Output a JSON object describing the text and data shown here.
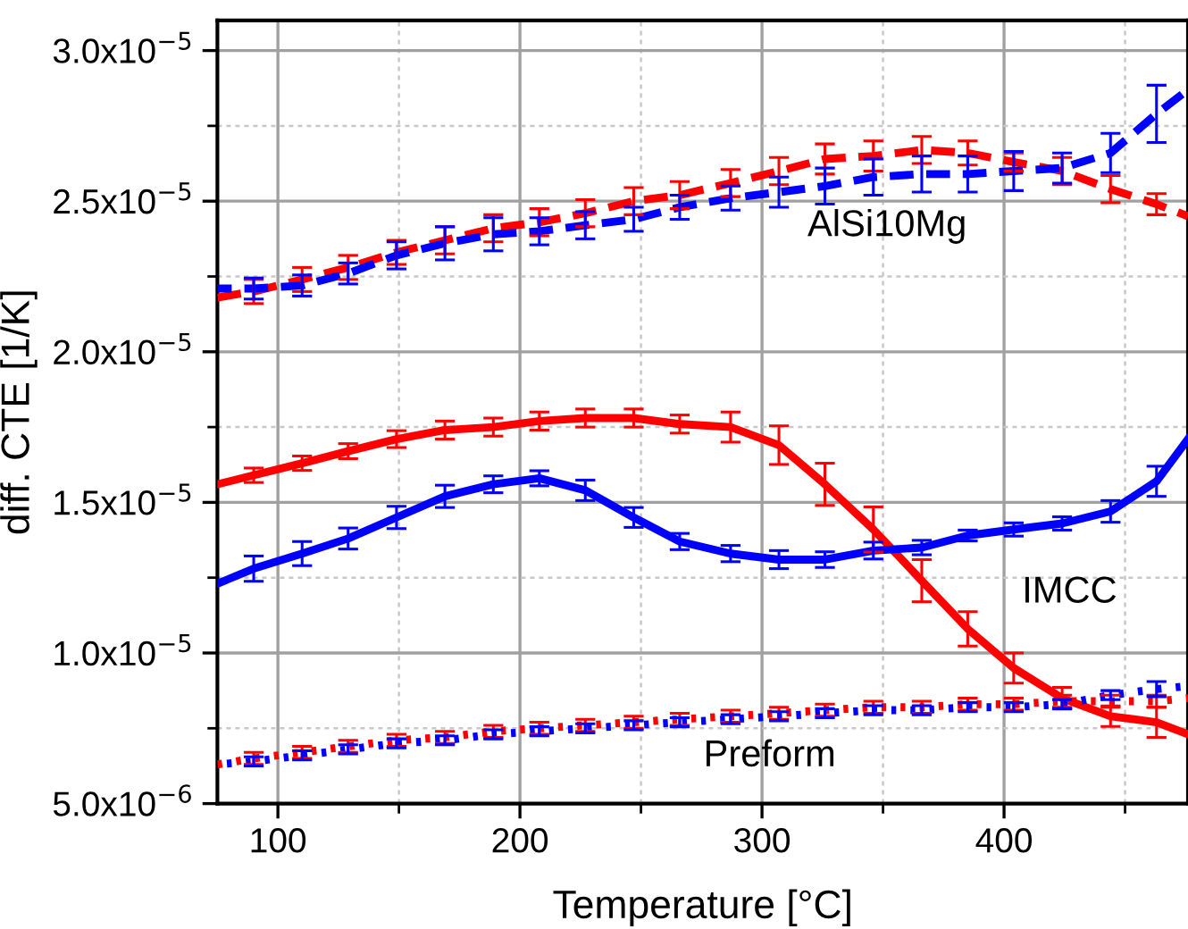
{
  "chart_data": {
    "type": "line",
    "xlabel": "Temperature [°C]",
    "ylabel": "diff. CTE [1/K]",
    "xlim": [
      75,
      476
    ],
    "xticks": [
      100,
      200,
      300,
      400
    ],
    "ylim": [
      5e-06,
      3.1e-05
    ],
    "yticks": [
      {
        "value": 5e-06,
        "label": "5.0x10$^{−6}$"
      },
      {
        "value": 1e-05,
        "label": "1.0x10$^{−5}$"
      },
      {
        "value": 1.5e-05,
        "label": "1.5x10$^{−5}$"
      },
      {
        "value": 2e-05,
        "label": "2.0x10$^{−5}$"
      },
      {
        "value": 2.5e-05,
        "label": "2.5x10$^{−5}$"
      },
      {
        "value": 3e-05,
        "label": "3.0x10$^{−5}$"
      }
    ],
    "grid": true,
    "marker": "none",
    "annotations": [
      "AlSi10Mg",
      "IMCC",
      "Preform"
    ],
    "series": [
      {
        "color": "#ff0000",
        "line_style": "dashed",
        "x": [
          75,
          90,
          110,
          129,
          149,
          169,
          189,
          208,
          227,
          247,
          266,
          287,
          307,
          326,
          346,
          366,
          385,
          404,
          424,
          444,
          463,
          476
        ],
        "values": [
          2.18e-05,
          2.2e-05,
          2.24e-05,
          2.28e-05,
          2.33e-05,
          2.37e-05,
          2.41e-05,
          2.43e-05,
          2.46e-05,
          2.5e-05,
          2.52e-05,
          2.56e-05,
          2.6e-05,
          2.64e-05,
          2.65e-05,
          2.67e-05,
          2.66e-05,
          2.63e-05,
          2.6e-05,
          2.54e-05,
          2.49e-05,
          2.45e-05
        ],
        "errors": [
          null,
          4e-07,
          4e-07,
          4e-07,
          4e-07,
          4.5e-07,
          4.5e-07,
          4.5e-07,
          4.5e-07,
          4.5e-07,
          4.5e-07,
          4.5e-07,
          4.5e-07,
          5e-07,
          5e-07,
          4.5e-07,
          4e-07,
          3e-07,
          4.5e-07,
          4.5e-07,
          3.5e-07,
          null
        ]
      },
      {
        "color": "#0000ff",
        "line_style": "dashed",
        "x": [
          75,
          90,
          110,
          129,
          149,
          169,
          189,
          208,
          227,
          247,
          266,
          287,
          307,
          326,
          346,
          366,
          385,
          404,
          424,
          444,
          463,
          476
        ],
        "values": [
          2.21e-05,
          2.21e-05,
          2.22e-05,
          2.26e-05,
          2.32e-05,
          2.36e-05,
          2.39e-05,
          2.4e-05,
          2.42e-05,
          2.44e-05,
          2.48e-05,
          2.51e-05,
          2.53e-05,
          2.55e-05,
          2.58e-05,
          2.59e-05,
          2.59e-05,
          2.6e-05,
          2.61e-05,
          2.66e-05,
          2.79e-05,
          2.87e-05
        ],
        "errors": [
          null,
          3.5e-07,
          3.5e-07,
          3.5e-07,
          4.5e-07,
          5.5e-07,
          5.5e-07,
          4.5e-07,
          4.5e-07,
          4e-07,
          4e-07,
          4e-07,
          5e-07,
          6e-07,
          6e-07,
          6e-07,
          6e-07,
          6.5e-07,
          5e-07,
          6.5e-07,
          9.5e-07,
          null
        ]
      },
      {
        "color": "#ff0000",
        "line_style": "solid",
        "x": [
          75,
          90,
          110,
          129,
          149,
          169,
          189,
          208,
          227,
          247,
          266,
          287,
          307,
          326,
          346,
          366,
          385,
          404,
          424,
          444,
          463,
          476
        ],
        "values": [
          1.56e-05,
          1.59e-05,
          1.63e-05,
          1.67e-05,
          1.71e-05,
          1.74e-05,
          1.75e-05,
          1.77e-05,
          1.78e-05,
          1.78e-05,
          1.76e-05,
          1.75e-05,
          1.69e-05,
          1.56e-05,
          1.41e-05,
          1.24e-05,
          1.08e-05,
          9.5e-06,
          8.5e-06,
          7.9e-06,
          7.7e-06,
          7.3e-06
        ],
        "errors": [
          null,
          2.4e-07,
          2.4e-07,
          2.5e-07,
          2.8e-07,
          3e-07,
          3e-07,
          3e-07,
          3e-07,
          3e-07,
          3e-07,
          5e-07,
          6.4e-07,
          7e-07,
          7.5e-07,
          7e-07,
          5.7e-07,
          5e-07,
          3.6e-07,
          3.4e-07,
          5e-07,
          null
        ]
      },
      {
        "color": "#0000ff",
        "line_style": "solid",
        "x": [
          75,
          90,
          110,
          129,
          149,
          169,
          189,
          208,
          227,
          247,
          266,
          287,
          307,
          326,
          346,
          366,
          385,
          404,
          424,
          444,
          463,
          476
        ],
        "values": [
          1.23e-05,
          1.28e-05,
          1.33e-05,
          1.38e-05,
          1.45e-05,
          1.52e-05,
          1.56e-05,
          1.58e-05,
          1.54e-05,
          1.45e-05,
          1.37e-05,
          1.33e-05,
          1.31e-05,
          1.31e-05,
          1.34e-05,
          1.35e-05,
          1.39e-05,
          1.41e-05,
          1.43e-05,
          1.47e-05,
          1.57e-05,
          1.71e-05
        ],
        "errors": [
          null,
          4.2e-07,
          4e-07,
          3.5e-07,
          3.7e-07,
          3.7e-07,
          2.8e-07,
          2.5e-07,
          3.4e-07,
          3.3e-07,
          2.7e-07,
          2.7e-07,
          3e-07,
          2.6e-07,
          2.8e-07,
          2.4e-07,
          1.8e-07,
          2.2e-07,
          2.2e-07,
          3.6e-07,
          5e-07,
          null
        ]
      },
      {
        "color": "#ff0000",
        "line_style": "dotted",
        "x": [
          75,
          90,
          110,
          129,
          149,
          169,
          189,
          208,
          227,
          247,
          266,
          287,
          307,
          326,
          346,
          366,
          385,
          404,
          424,
          444,
          463,
          476
        ],
        "values": [
          6.3e-06,
          6.5e-06,
          6.7e-06,
          6.9e-06,
          7.1e-06,
          7.2e-06,
          7.4e-06,
          7.5e-06,
          7.6e-06,
          7.7e-06,
          7.8e-06,
          7.9e-06,
          8e-06,
          8.1e-06,
          8.2e-06,
          8.2e-06,
          8.3e-06,
          8.3e-06,
          8.4e-06,
          8.4e-06,
          8.4e-06,
          8.5e-06
        ],
        "errors": [
          null,
          2e-07,
          2e-07,
          2e-07,
          2e-07,
          2e-07,
          2e-07,
          2e-07,
          2e-07,
          2e-07,
          2e-07,
          2e-07,
          2e-07,
          2e-07,
          2e-07,
          2e-07,
          2e-07,
          2e-07,
          2e-07,
          2e-07,
          2e-07,
          null
        ]
      },
      {
        "color": "#0000ff",
        "line_style": "dotted",
        "x": [
          75,
          90,
          110,
          129,
          149,
          169,
          189,
          208,
          227,
          247,
          266,
          287,
          307,
          326,
          346,
          366,
          385,
          404,
          424,
          444,
          463,
          476
        ],
        "values": [
          6.3e-06,
          6.4e-06,
          6.6e-06,
          6.8e-06,
          7e-06,
          7.1e-06,
          7.3e-06,
          7.4e-06,
          7.5e-06,
          7.6e-06,
          7.7e-06,
          7.8e-06,
          7.9e-06,
          8e-06,
          8.1e-06,
          8.1e-06,
          8.2e-06,
          8.2e-06,
          8.3e-06,
          8.6e-06,
          8.8e-06,
          8.9e-06
        ],
        "errors": [
          null,
          1.5e-07,
          1.5e-07,
          1.5e-07,
          1.5e-07,
          1.5e-07,
          1.5e-07,
          1.5e-07,
          1.5e-07,
          1.5e-07,
          1.5e-07,
          1.5e-07,
          1.5e-07,
          1.5e-07,
          1.5e-07,
          1.5e-07,
          1.5e-07,
          1.5e-07,
          1.5e-07,
          1.5e-07,
          2.5e-07,
          null
        ]
      }
    ]
  }
}
